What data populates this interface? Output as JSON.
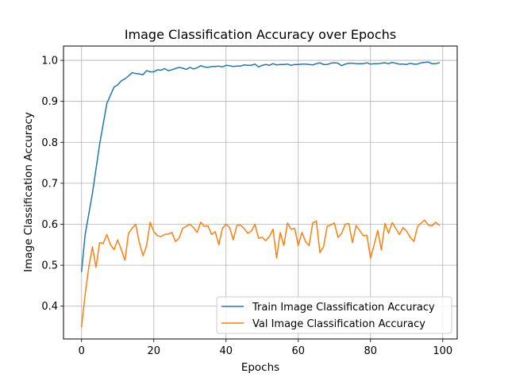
{
  "chart_data": {
    "type": "line",
    "title": "Image Classification Accuracy over Epochs",
    "xlabel": "Epochs",
    "ylabel": "Image Classification Accuracy",
    "xlim": [
      -5,
      104
    ],
    "ylim": [
      0.32,
      1.035
    ],
    "xticks": [
      0,
      20,
      40,
      60,
      80,
      100
    ],
    "yticks": [
      0.4,
      0.5,
      0.6,
      0.7,
      0.8,
      0.9,
      1.0
    ],
    "xtick_labels": [
      "0",
      "20",
      "40",
      "60",
      "80",
      "100"
    ],
    "ytick_labels": [
      "0.4",
      "0.5",
      "0.6",
      "0.7",
      "0.8",
      "0.9",
      "1.0"
    ],
    "grid": true,
    "legend_position": "lower-right",
    "series": [
      {
        "name": "Train Image Classification Accuracy",
        "color": "#1f77b4",
        "values": [
          0.485,
          0.575,
          0.625,
          0.675,
          0.735,
          0.795,
          0.845,
          0.895,
          0.915,
          0.935,
          0.94,
          0.95,
          0.955,
          0.962,
          0.97,
          0.968,
          0.967,
          0.965,
          0.975,
          0.972,
          0.972,
          0.977,
          0.976,
          0.98,
          0.975,
          0.977,
          0.98,
          0.983,
          0.981,
          0.978,
          0.983,
          0.979,
          0.982,
          0.987,
          0.984,
          0.983,
          0.985,
          0.985,
          0.986,
          0.984,
          0.988,
          0.987,
          0.985,
          0.986,
          0.986,
          0.989,
          0.988,
          0.988,
          0.991,
          0.984,
          0.988,
          0.99,
          0.988,
          0.992,
          0.989,
          0.99,
          0.99,
          0.991,
          0.988,
          0.99,
          0.99,
          0.991,
          0.991,
          0.99,
          0.989,
          0.992,
          0.994,
          0.99,
          0.99,
          0.993,
          0.994,
          0.993,
          0.987,
          0.991,
          0.993,
          0.993,
          0.992,
          0.992,
          0.992,
          0.994,
          0.991,
          0.992,
          0.992,
          0.993,
          0.994,
          0.992,
          0.995,
          0.993,
          0.991,
          0.991,
          0.99,
          0.993,
          0.991,
          0.991,
          0.994,
          0.995,
          0.996,
          0.992,
          0.992,
          0.994
        ]
      },
      {
        "name": "Val Image Classification Accuracy",
        "color": "#ff7f0e",
        "values": [
          0.35,
          0.43,
          0.495,
          0.545,
          0.495,
          0.555,
          0.553,
          0.575,
          0.55,
          0.538,
          0.562,
          0.538,
          0.512,
          0.578,
          0.59,
          0.6,
          0.555,
          0.523,
          0.548,
          0.605,
          0.582,
          0.572,
          0.57,
          0.575,
          0.576,
          0.58,
          0.558,
          0.566,
          0.59,
          0.595,
          0.6,
          0.592,
          0.58,
          0.605,
          0.595,
          0.596,
          0.575,
          0.582,
          0.55,
          0.59,
          0.6,
          0.592,
          0.562,
          0.597,
          0.598,
          0.59,
          0.578,
          0.583,
          0.6,
          0.566,
          0.568,
          0.56,
          0.57,
          0.588,
          0.518,
          0.58,
          0.548,
          0.603,
          0.588,
          0.59,
          0.548,
          0.58,
          0.558,
          0.548,
          0.603,
          0.608,
          0.531,
          0.545,
          0.595,
          0.598,
          0.603,
          0.568,
          0.578,
          0.6,
          0.602,
          0.555,
          0.597,
          0.585,
          0.572,
          0.573,
          0.517,
          0.55,
          0.585,
          0.537,
          0.602,
          0.578,
          0.604,
          0.59,
          0.575,
          0.592,
          0.583,
          0.568,
          0.558,
          0.594,
          0.603,
          0.61,
          0.598,
          0.596,
          0.605,
          0.598
        ]
      }
    ]
  }
}
